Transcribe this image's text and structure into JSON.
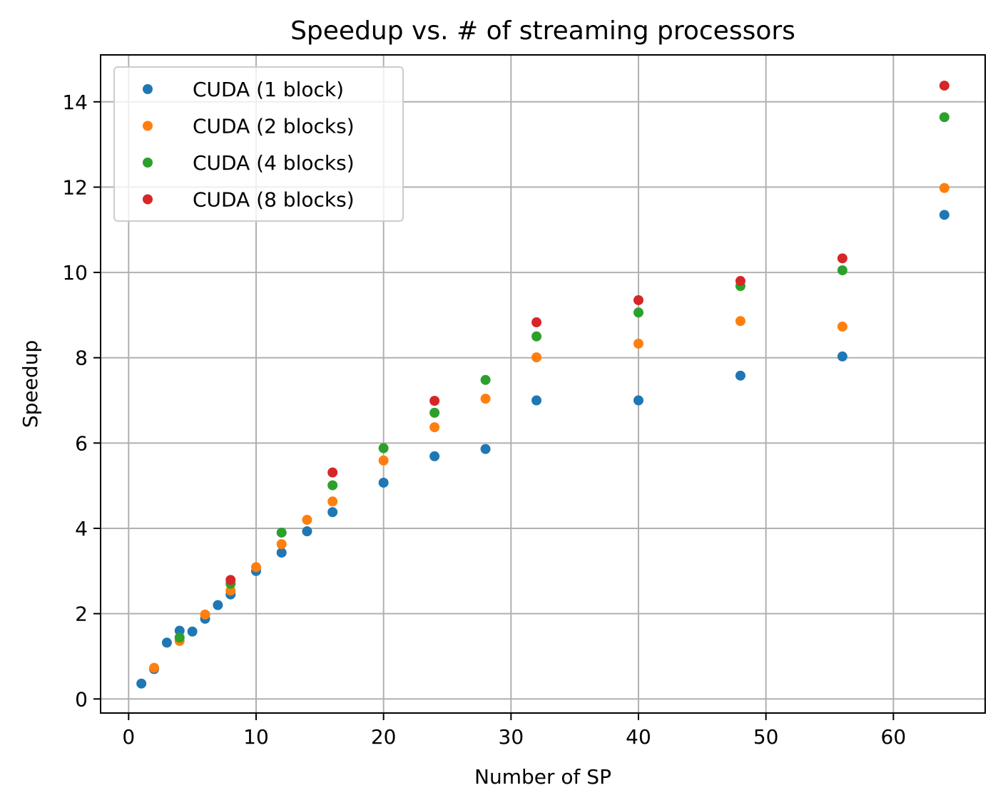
{
  "chart_data": {
    "type": "scatter",
    "title": "Speedup vs. # of streaming processors",
    "xlabel": "Number of SP",
    "ylabel": "Speedup",
    "xlim": [
      -2.2,
      67.2
    ],
    "ylim": [
      -0.33,
      15.1
    ],
    "xticks": [
      0,
      10,
      20,
      30,
      40,
      50,
      60
    ],
    "yticks": [
      0,
      2,
      4,
      6,
      8,
      10,
      12,
      14
    ],
    "grid": true,
    "legend_position": "upper-left",
    "series": [
      {
        "name": "CUDA (1 block)",
        "color": "#1f77b4",
        "points": [
          [
            1,
            0.36
          ],
          [
            2,
            0.7
          ],
          [
            3,
            1.32
          ],
          [
            4,
            1.6
          ],
          [
            5,
            1.58
          ],
          [
            6,
            1.88
          ],
          [
            7,
            2.2
          ],
          [
            8,
            2.45
          ],
          [
            10,
            3.0
          ],
          [
            12,
            3.43
          ],
          [
            14,
            3.93
          ],
          [
            16,
            4.38
          ],
          [
            20,
            5.07
          ],
          [
            24,
            5.69
          ],
          [
            28,
            5.86
          ],
          [
            32,
            7.0
          ],
          [
            40,
            7.0
          ],
          [
            48,
            7.58
          ],
          [
            56,
            8.03
          ],
          [
            64,
            11.35
          ]
        ]
      },
      {
        "name": "CUDA (2 blocks)",
        "color": "#ff7f0e",
        "points": [
          [
            2,
            0.73
          ],
          [
            4,
            1.36
          ],
          [
            6,
            1.98
          ],
          [
            8,
            2.54
          ],
          [
            10,
            3.09
          ],
          [
            12,
            3.63
          ],
          [
            14,
            4.2
          ],
          [
            16,
            4.63
          ],
          [
            20,
            5.59
          ],
          [
            24,
            6.37
          ],
          [
            28,
            7.04
          ],
          [
            32,
            8.01
          ],
          [
            40,
            8.33
          ],
          [
            48,
            8.86
          ],
          [
            56,
            8.73
          ],
          [
            64,
            11.98
          ]
        ]
      },
      {
        "name": "CUDA (4 blocks)",
        "color": "#2ca02c",
        "points": [
          [
            4,
            1.44
          ],
          [
            8,
            2.7
          ],
          [
            12,
            3.9
          ],
          [
            16,
            5.01
          ],
          [
            20,
            5.88
          ],
          [
            24,
            6.71
          ],
          [
            28,
            7.48
          ],
          [
            32,
            8.5
          ],
          [
            40,
            9.06
          ],
          [
            48,
            9.68
          ],
          [
            56,
            10.05
          ],
          [
            64,
            13.64
          ]
        ]
      },
      {
        "name": "CUDA (8 blocks)",
        "color": "#d62728",
        "points": [
          [
            8,
            2.79
          ],
          [
            16,
            5.31
          ],
          [
            24,
            6.99
          ],
          [
            32,
            8.83
          ],
          [
            40,
            9.35
          ],
          [
            48,
            9.8
          ],
          [
            56,
            10.33
          ],
          [
            64,
            14.38
          ]
        ]
      }
    ]
  }
}
